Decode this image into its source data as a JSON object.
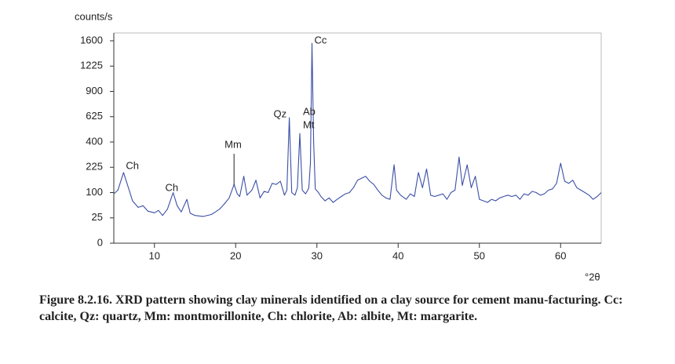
{
  "chart_data": {
    "type": "line",
    "y_label": "counts/s",
    "x_label": "°2θ",
    "yscale": "sqrt",
    "xlim": [
      5,
      65
    ],
    "ylim": [
      0,
      1600
    ],
    "xticks": [
      10,
      20,
      30,
      40,
      50,
      60
    ],
    "yticks": [
      0,
      25,
      100,
      225,
      400,
      625,
      900,
      1225,
      1600
    ],
    "grid": false,
    "x": [
      5,
      5.5,
      6.2,
      6.8,
      7.3,
      8,
      8.6,
      9.2,
      10,
      10.5,
      11,
      11.6,
      12.3,
      12.8,
      13.3,
      14,
      14.4,
      15,
      16,
      17,
      17.5,
      18,
      18.6,
      19.2,
      19.8,
      20.2,
      20.5,
      21,
      21.4,
      22,
      22.5,
      23,
      23.5,
      24,
      24.5,
      25,
      25.5,
      26,
      26.3,
      26.6,
      26.9,
      27.3,
      27.6,
      27.9,
      28.2,
      28.6,
      29,
      29.2,
      29.4,
      29.6,
      29.8,
      30.2,
      30.5,
      31,
      31.5,
      32,
      32.5,
      33,
      33.5,
      34,
      34.5,
      35,
      35.5,
      36,
      36.5,
      37,
      37.5,
      38,
      38.5,
      39,
      39.5,
      39.8,
      40.3,
      41,
      41.5,
      42,
      42.5,
      43,
      43.5,
      44,
      44.5,
      45,
      45.5,
      46,
      46.5,
      47,
      47.5,
      47.9,
      48.5,
      49,
      49.5,
      50,
      50.5,
      51,
      51.5,
      52,
      52.5,
      53,
      53.5,
      54,
      54.5,
      55,
      55.5,
      56,
      56.5,
      57,
      57.5,
      58,
      58.5,
      59,
      59.5,
      60,
      60.5,
      61,
      61.5,
      62,
      62.5,
      63,
      63.5,
      64,
      64.5,
      65
    ],
    "series": [
      {
        "color": "#3b4fa6",
        "values": [
          95,
          110,
          195,
          120,
          70,
          50,
          55,
          40,
          36,
          42,
          30,
          45,
          100,
          55,
          38,
          75,
          35,
          30,
          28,
          32,
          38,
          45,
          60,
          80,
          135,
          95,
          85,
          175,
          90,
          110,
          155,
          80,
          105,
          100,
          140,
          135,
          150,
          90,
          110,
          615,
          100,
          90,
          120,
          470,
          110,
          95,
          118,
          250,
          1560,
          400,
          115,
          100,
          85,
          70,
          80,
          65,
          75,
          85,
          95,
          100,
          120,
          155,
          165,
          175,
          150,
          135,
          110,
          90,
          80,
          75,
          240,
          110,
          90,
          75,
          95,
          85,
          195,
          120,
          215,
          90,
          85,
          90,
          95,
          75,
          100,
          110,
          290,
          130,
          240,
          120,
          175,
          75,
          70,
          65,
          75,
          70,
          80,
          85,
          90,
          85,
          90,
          75,
          95,
          90,
          105,
          100,
          90,
          95,
          110,
          115,
          140,
          250,
          150,
          140,
          155,
          120,
          110,
          100,
          90,
          75,
          85,
          100
        ]
      }
    ],
    "annotations": [
      {
        "text": "Ch",
        "x": 6.2
      },
      {
        "text": "Ch",
        "x": 12.3
      },
      {
        "text": "Mm",
        "x": 19.8
      },
      {
        "text": "Qz",
        "x": 26.6
      },
      {
        "text": "Ab",
        "x": 27.9
      },
      {
        "text": "Mt",
        "x": 27.9
      },
      {
        "text": "Cc",
        "x": 29.4
      }
    ]
  },
  "caption": "Figure 8.2.16. XRD pattern showing clay minerals identified on a clay source for cement manu-facturing. Cc: calcite, Qz: quartz, Mm: montmorillonite, Ch: chlorite, Ab: albite, Mt: margarite."
}
